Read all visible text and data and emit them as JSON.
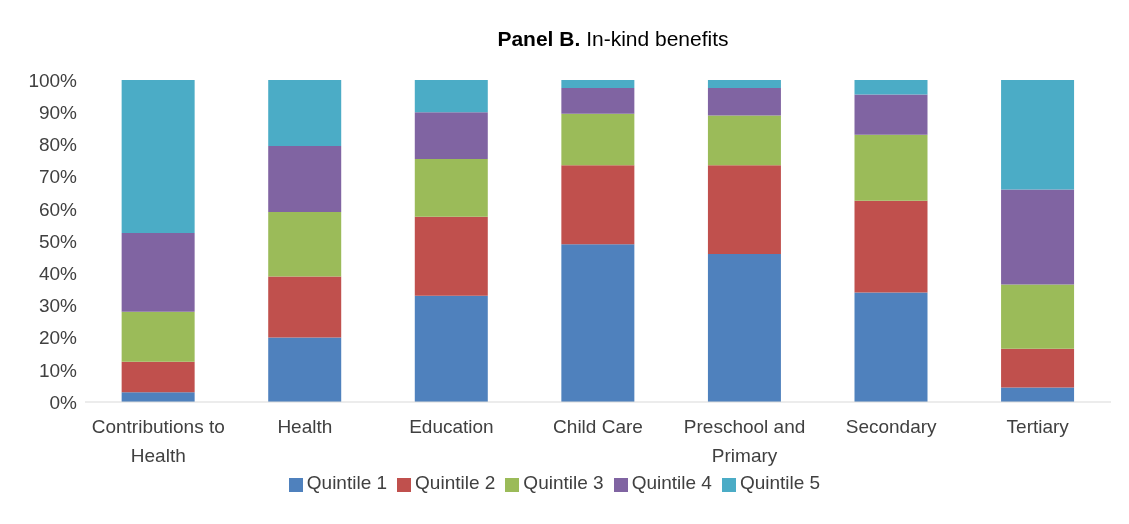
{
  "chart_data": {
    "type": "bar",
    "title": "Panel B. In-kind benefits",
    "stacked": true,
    "categories": [
      "Contributions to Health",
      "Health",
      "Education",
      "Child Care",
      "Preschool and Primary",
      "Secondary",
      "Tertiary"
    ],
    "series": [
      {
        "name": "Quintile 1",
        "color": "#4f81bd",
        "values": [
          3,
          20,
          33,
          49,
          46,
          34,
          4.5
        ]
      },
      {
        "name": "Quintile 2",
        "color": "#c0504d",
        "values": [
          9.5,
          19,
          24.5,
          24.5,
          27.5,
          28.5,
          12
        ]
      },
      {
        "name": "Quintile 3",
        "color": "#9bbb59",
        "values": [
          15.5,
          20,
          18,
          16,
          15.5,
          20.5,
          20
        ]
      },
      {
        "name": "Quintile 4",
        "color": "#8064a2",
        "values": [
          24.5,
          20.5,
          14.5,
          8,
          8.5,
          12.5,
          29.5
        ]
      },
      {
        "name": "Quintile 5",
        "color": "#4bacc6",
        "values": [
          47.5,
          20.5,
          10,
          2.5,
          2.5,
          4.5,
          34
        ]
      }
    ],
    "ylim": [
      0,
      100
    ],
    "yticks": [
      {
        "value": 0,
        "label": "0%"
      },
      {
        "value": 10,
        "label": "10%"
      },
      {
        "value": 20,
        "label": "20%"
      },
      {
        "value": 30,
        "label": "30%"
      },
      {
        "value": 40,
        "label": "40%"
      },
      {
        "value": 50,
        "label": "50%"
      },
      {
        "value": 60,
        "label": "60%"
      },
      {
        "value": 70,
        "label": "70%"
      },
      {
        "value": 80,
        "label": "80%"
      },
      {
        "value": 90,
        "label": "90%"
      },
      {
        "value": 100,
        "label": "100%"
      }
    ],
    "grid": false,
    "legend": "bottom"
  }
}
